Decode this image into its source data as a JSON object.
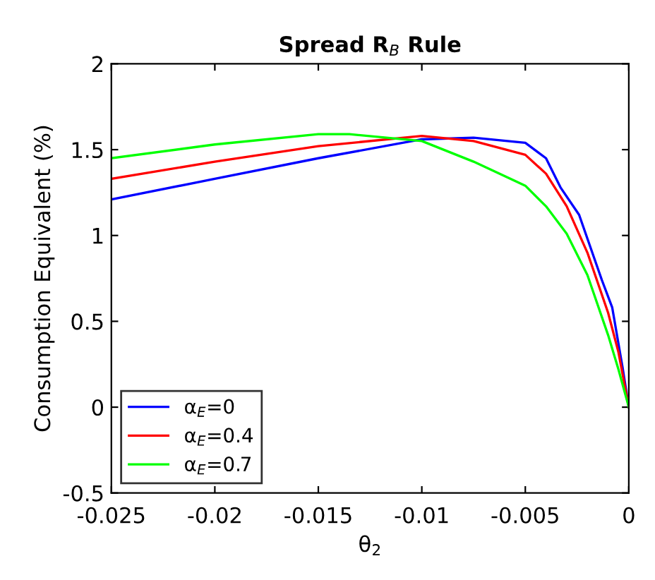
{
  "chart_data": {
    "type": "line",
    "title": "Spread R$_{B}$ Rule",
    "xlabel": "θ$_{2}$",
    "ylabel": "Consumption Equivalent (%)",
    "xlim": [
      -0.025,
      0
    ],
    "ylim": [
      -0.5,
      2
    ],
    "xticks": [
      -0.025,
      -0.02,
      -0.015,
      -0.01,
      -0.005,
      0
    ],
    "yticks": [
      -0.5,
      0,
      0.5,
      1,
      1.5,
      2
    ],
    "grid": false,
    "legend": "bottom left",
    "marker": "none",
    "line_style": "solid",
    "series": [
      {
        "name": "α$_{E}$=0",
        "color": "#0000ff",
        "x": [
          -0.025,
          -0.02,
          -0.015,
          -0.01,
          -0.0075,
          -0.005,
          -0.004,
          -0.0033,
          -0.0024,
          -0.0013,
          -0.0008,
          -0.0003,
          0
        ],
        "values": [
          1.21,
          1.33,
          1.45,
          1.56,
          1.57,
          1.54,
          1.45,
          1.28,
          1.12,
          0.74,
          0.58,
          0.23,
          0
        ]
      },
      {
        "name": "α$_{E}$=0.4",
        "color": "#ff0000",
        "x": [
          -0.025,
          -0.02,
          -0.015,
          -0.01,
          -0.0075,
          -0.005,
          -0.004,
          -0.003,
          -0.002,
          -0.001,
          -0.0005,
          0
        ],
        "values": [
          1.33,
          1.43,
          1.52,
          1.58,
          1.55,
          1.47,
          1.36,
          1.17,
          0.9,
          0.55,
          0.32,
          0
        ]
      },
      {
        "name": "α$_{E}$=0.7",
        "color": "#00ff00",
        "x": [
          -0.025,
          -0.02,
          -0.015,
          -0.0135,
          -0.01,
          -0.0075,
          -0.005,
          -0.004,
          -0.003,
          -0.002,
          -0.001,
          -0.0005,
          0
        ],
        "values": [
          1.45,
          1.53,
          1.59,
          1.59,
          1.55,
          1.43,
          1.29,
          1.17,
          1.01,
          0.77,
          0.42,
          0.22,
          0
        ]
      }
    ]
  }
}
